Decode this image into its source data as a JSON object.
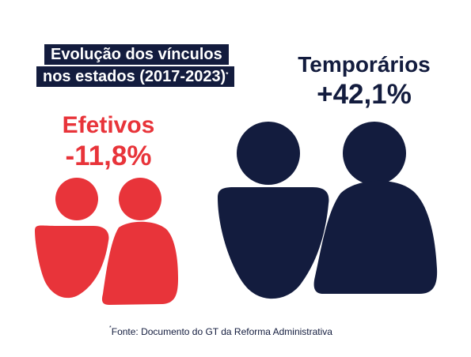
{
  "title": {
    "line1": "Evolução dos vínculos",
    "line2": "nos estados (2017-2023)",
    "marker": "*"
  },
  "efetivos": {
    "label": "Efetivos",
    "value": "-11,8%",
    "color": "#e8343a"
  },
  "temporarios": {
    "label": "Temporários",
    "value": "+42,1%",
    "color": "#131c3e"
  },
  "icons": {
    "efetivos": "two-people-icon",
    "temporarios": "two-people-icon"
  },
  "footnote": {
    "marker": "*",
    "text": "Fonte: Documento do GT da Reforma Administrativa"
  }
}
